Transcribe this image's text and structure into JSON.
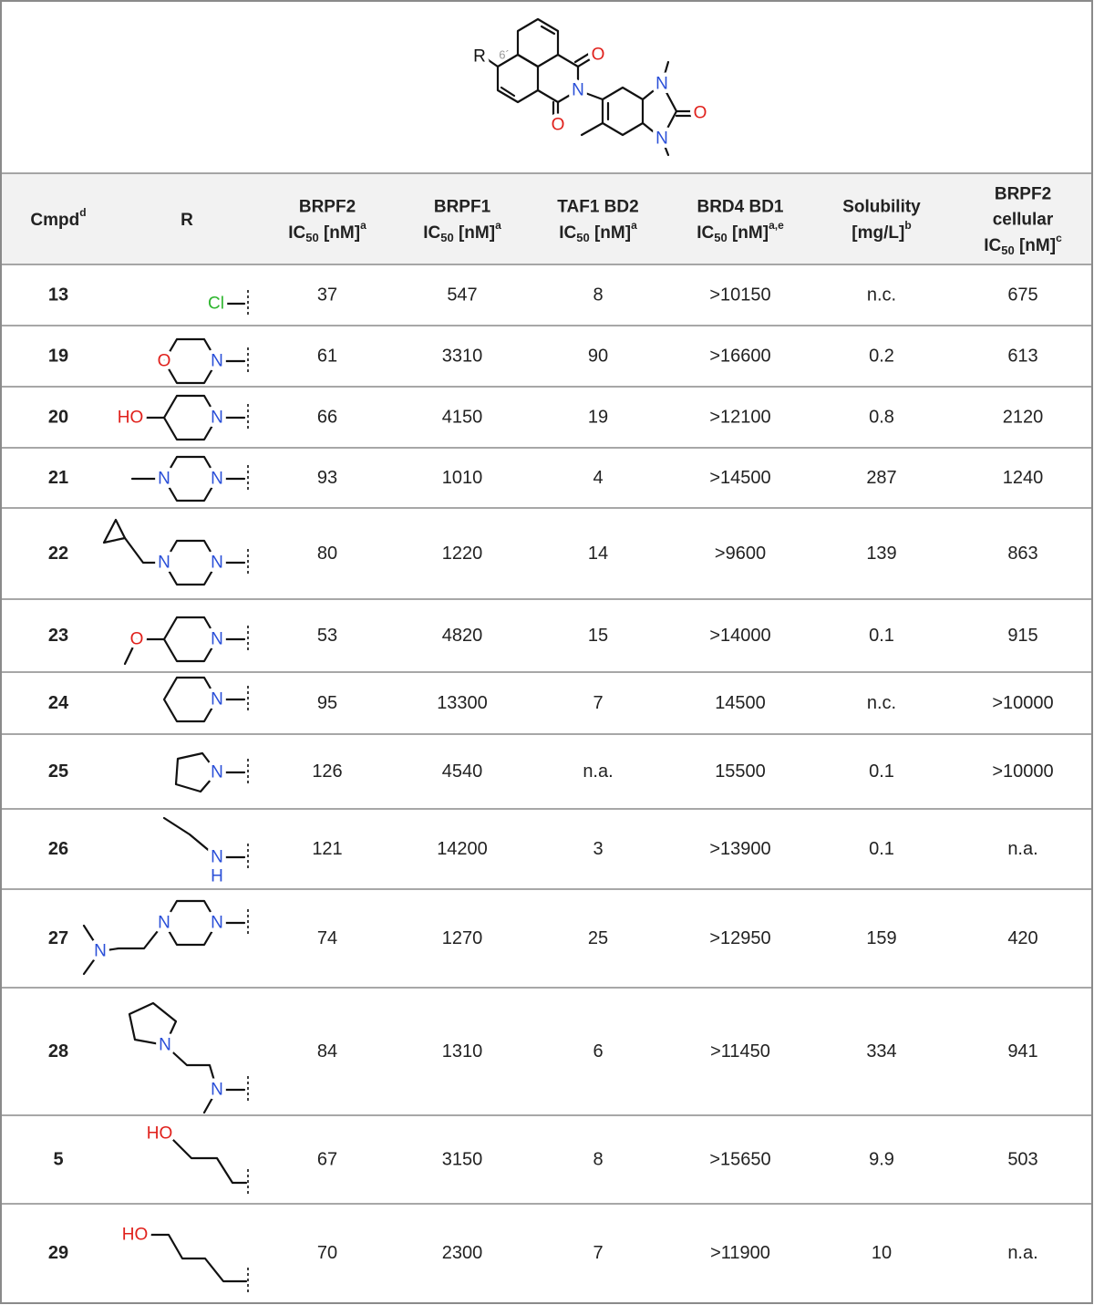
{
  "core_labels": [
    "R",
    "6´",
    "O",
    "N",
    "O",
    "N",
    "O",
    "N"
  ],
  "headers": [
    {
      "text": "Cmpd",
      "sup": "d"
    },
    {
      "text": "R"
    },
    {
      "lines": [
        "BRPF2"
      ],
      "ic": "IC",
      "sub": "50",
      "unit": " [nM]",
      "sup": "a"
    },
    {
      "lines": [
        "BRPF1"
      ],
      "ic": "IC",
      "sub": "50",
      "unit": " [nM]",
      "sup": "a"
    },
    {
      "lines": [
        "TAF1 BD2"
      ],
      "ic": "IC",
      "sub": "50",
      "unit": " [nM]",
      "sup": "a"
    },
    {
      "lines": [
        "BRD4 BD1"
      ],
      "ic": "IC",
      "sub": "50",
      "unit": " [nM]",
      "sup": "a,e"
    },
    {
      "lines": [
        "Solubility"
      ],
      "unit": "[mg/L]",
      "sup": "b"
    },
    {
      "lines": [
        "BRPF2",
        "cellular"
      ],
      "ic": "IC",
      "sub": "50",
      "unit": " [nM]",
      "sup": "c"
    }
  ],
  "rows": [
    {
      "cmpd": 13,
      "r_labels": [
        "Cl"
      ],
      "values": [
        37,
        547,
        8,
        ">10150",
        "n.c.",
        675
      ]
    },
    {
      "cmpd": 19,
      "r_labels": [
        "O",
        "N"
      ],
      "values": [
        61,
        3310,
        90,
        ">16600",
        0.2,
        613
      ]
    },
    {
      "cmpd": 20,
      "r_labels": [
        "HO",
        "N"
      ],
      "values": [
        66,
        4150,
        19,
        ">12100",
        0.8,
        2120
      ]
    },
    {
      "cmpd": 21,
      "r_labels": [
        "N",
        "N"
      ],
      "values": [
        93,
        1010,
        4,
        ">14500",
        287,
        1240
      ]
    },
    {
      "cmpd": 22,
      "r_labels": [
        "N",
        "N"
      ],
      "values": [
        80,
        1220,
        14,
        ">9600",
        139,
        863
      ]
    },
    {
      "cmpd": 23,
      "r_labels": [
        "O",
        "N"
      ],
      "values": [
        53,
        4820,
        15,
        ">14000",
        0.1,
        915
      ]
    },
    {
      "cmpd": 24,
      "r_labels": [
        "N"
      ],
      "values": [
        95,
        13300,
        7,
        14500,
        "n.c.",
        ">10000"
      ]
    },
    {
      "cmpd": 25,
      "r_labels": [
        "N"
      ],
      "values": [
        126,
        4540,
        "n.a.",
        15500,
        0.1,
        ">10000"
      ]
    },
    {
      "cmpd": 26,
      "r_labels": [
        "N",
        "H"
      ],
      "values": [
        121,
        14200,
        3,
        ">13900",
        0.1,
        "n.a."
      ]
    },
    {
      "cmpd": 27,
      "r_labels": [
        "N",
        "N",
        "N"
      ],
      "values": [
        74,
        1270,
        25,
        ">12950",
        159,
        420
      ]
    },
    {
      "cmpd": 28,
      "r_labels": [
        "N",
        "N"
      ],
      "values": [
        84,
        1310,
        6,
        ">11450",
        334,
        941
      ]
    },
    {
      "cmpd": 5,
      "r_labels": [
        "HO"
      ],
      "values": [
        67,
        3150,
        8,
        ">15650",
        9.9,
        503
      ]
    },
    {
      "cmpd": 29,
      "r_labels": [
        "HO"
      ],
      "values": [
        70,
        2300,
        7,
        ">11900",
        10,
        "n.a."
      ]
    }
  ]
}
